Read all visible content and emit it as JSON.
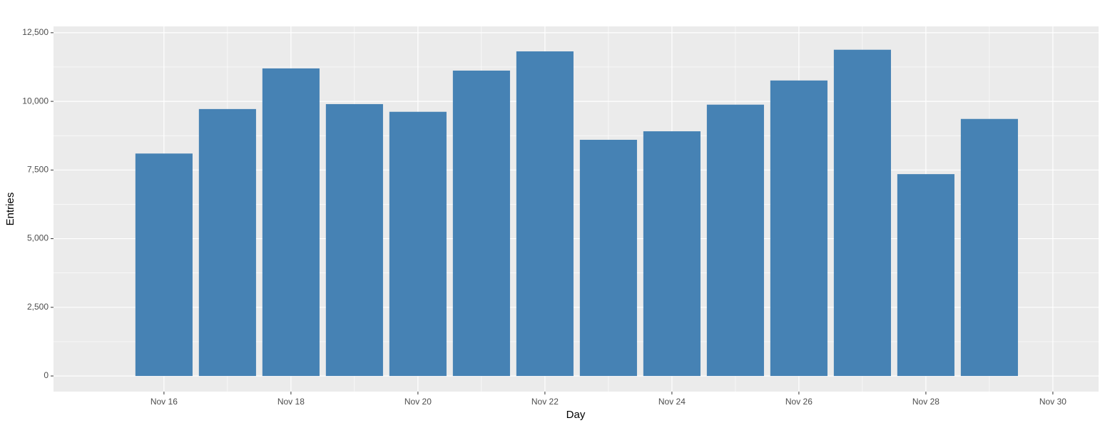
{
  "chart_data": {
    "type": "bar",
    "x_label": "Day",
    "y_label": "Entries",
    "x": [
      16,
      17,
      18,
      19,
      20,
      21,
      22,
      23,
      24,
      25,
      26,
      27,
      28,
      29
    ],
    "values": [
      8100,
      9720,
      11200,
      9900,
      9620,
      11120,
      11820,
      8600,
      8910,
      9880,
      10760,
      11880,
      7350,
      9360
    ],
    "color": "#4682b4",
    "xlim": [
      14.26,
      30.72
    ],
    "xticks": [
      {
        "value": 16,
        "label": "Nov 16"
      },
      {
        "value": 18,
        "label": "Nov 18"
      },
      {
        "value": 20,
        "label": "Nov 20"
      },
      {
        "value": 22,
        "label": "Nov 22"
      },
      {
        "value": 24,
        "label": "Nov 24"
      },
      {
        "value": 26,
        "label": "Nov 26"
      },
      {
        "value": 28,
        "label": "Nov 28"
      },
      {
        "value": 30,
        "label": "Nov 30"
      }
    ],
    "ylim": [
      -570,
      12730
    ],
    "yticks": [
      0,
      {
        "value": 2500,
        "label": "2,500"
      },
      {
        "value": 5000,
        "label": "5,000"
      },
      {
        "value": 7500,
        "label": "7,500"
      },
      {
        "value": 10000,
        "label": "10,000"
      },
      {
        "value": 12500,
        "label": "12,500"
      }
    ],
    "grid": true
  }
}
